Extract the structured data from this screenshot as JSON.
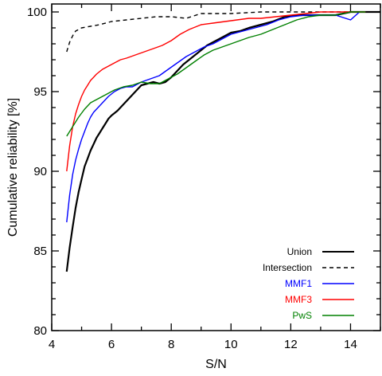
{
  "chart_data": {
    "type": "line",
    "title": "",
    "xlabel": "S/N",
    "ylabel": "Cumulative reliability [%]",
    "xlim": [
      4,
      15
    ],
    "ylim": [
      80,
      100.5
    ],
    "xticks": [
      4,
      6,
      8,
      10,
      12,
      14
    ],
    "yticks": [
      80,
      85,
      90,
      95,
      100
    ],
    "grid": false,
    "legend_position": "bottom-right",
    "series": [
      {
        "name": "Union",
        "color": "#000000",
        "dash": "solid",
        "x": [
          4.5,
          4.6,
          4.7,
          4.8,
          4.9,
          5.0,
          5.1,
          5.2,
          5.3,
          5.4,
          5.5,
          5.6,
          5.7,
          5.8,
          5.9,
          6.0,
          6.2,
          6.4,
          6.6,
          6.8,
          7.0,
          7.2,
          7.4,
          7.6,
          7.8,
          8.0,
          8.2,
          8.4,
          8.6,
          8.8,
          9.0,
          9.2,
          9.4,
          9.6,
          9.8,
          10.0,
          10.3,
          10.6,
          11.0,
          11.4,
          11.8,
          12.2,
          12.6,
          13.0,
          13.5,
          14.0,
          14.5,
          15.0
        ],
        "y": [
          83.7,
          85.2,
          86.5,
          87.7,
          88.7,
          89.5,
          90.3,
          90.8,
          91.3,
          91.7,
          92.1,
          92.4,
          92.7,
          93.0,
          93.3,
          93.5,
          93.8,
          94.2,
          94.6,
          95.0,
          95.4,
          95.5,
          95.6,
          95.5,
          95.6,
          95.9,
          96.3,
          96.7,
          97.0,
          97.3,
          97.6,
          97.9,
          98.1,
          98.3,
          98.5,
          98.7,
          98.8,
          99.0,
          99.2,
          99.4,
          99.7,
          99.8,
          99.8,
          99.8,
          99.8,
          100.0,
          100.0,
          100.0
        ]
      },
      {
        "name": "Intersection",
        "color": "#000000",
        "dash": "dashed",
        "x": [
          4.5,
          4.6,
          4.7,
          4.8,
          4.9,
          5.0,
          5.3,
          5.6,
          6.0,
          6.5,
          7.0,
          7.5,
          8.0,
          8.5,
          9.0,
          9.5,
          10.0,
          11.0,
          12.0,
          13.0,
          14.0,
          15.0
        ],
        "y": [
          97.5,
          98.1,
          98.5,
          98.8,
          98.9,
          99.0,
          99.1,
          99.2,
          99.4,
          99.5,
          99.6,
          99.7,
          99.7,
          99.6,
          99.9,
          99.9,
          99.9,
          100.0,
          100.0,
          100.0,
          100.0,
          100.0
        ]
      },
      {
        "name": "MMF1",
        "color": "#0000ff",
        "dash": "solid",
        "x": [
          4.5,
          4.6,
          4.7,
          4.8,
          4.9,
          5.0,
          5.1,
          5.2,
          5.3,
          5.4,
          5.5,
          5.7,
          5.9,
          6.1,
          6.3,
          6.5,
          6.7,
          7.0,
          7.3,
          7.6,
          7.9,
          8.2,
          8.5,
          8.8,
          9.1,
          9.4,
          9.7,
          10.0,
          10.4,
          10.8,
          11.2,
          11.6,
          12.0,
          12.5,
          13.0,
          13.5,
          14.0,
          14.3
        ],
        "y": [
          86.8,
          88.5,
          89.8,
          90.7,
          91.4,
          92.0,
          92.5,
          93.0,
          93.4,
          93.7,
          93.9,
          94.3,
          94.7,
          95.0,
          95.2,
          95.3,
          95.3,
          95.6,
          95.8,
          96.0,
          96.4,
          96.8,
          97.2,
          97.5,
          97.8,
          98.0,
          98.3,
          98.6,
          98.8,
          99.0,
          99.2,
          99.5,
          99.7,
          99.8,
          99.8,
          99.8,
          99.5,
          100.0
        ]
      },
      {
        "name": "MMF3",
        "color": "#ff0000",
        "dash": "solid",
        "x": [
          4.5,
          4.6,
          4.7,
          4.8,
          4.9,
          5.0,
          5.1,
          5.2,
          5.3,
          5.4,
          5.5,
          5.7,
          5.9,
          6.1,
          6.3,
          6.5,
          6.8,
          7.1,
          7.4,
          7.7,
          8.0,
          8.3,
          8.6,
          9.0,
          9.4,
          9.8,
          10.2,
          10.6,
          11.0,
          11.5,
          12.0,
          12.5,
          13.0,
          13.5,
          14.0,
          14.5
        ],
        "y": [
          90.0,
          91.6,
          92.8,
          93.6,
          94.2,
          94.7,
          95.1,
          95.4,
          95.7,
          95.9,
          96.1,
          96.4,
          96.6,
          96.8,
          97.0,
          97.1,
          97.3,
          97.5,
          97.7,
          97.9,
          98.2,
          98.6,
          98.9,
          99.2,
          99.3,
          99.4,
          99.5,
          99.6,
          99.6,
          99.7,
          99.8,
          99.9,
          100.0,
          100.0,
          100.0,
          100.0
        ]
      },
      {
        "name": "PwS",
        "color": "#008000",
        "dash": "solid",
        "x": [
          4.5,
          4.7,
          4.9,
          5.1,
          5.3,
          5.5,
          5.8,
          6.1,
          6.4,
          6.7,
          7.0,
          7.3,
          7.6,
          7.9,
          8.2,
          8.5,
          8.8,
          9.1,
          9.4,
          9.7,
          10.0,
          10.3,
          10.6,
          11.0,
          11.4,
          11.8,
          12.2,
          12.6,
          13.0,
          13.5,
          14.0,
          14.5
        ],
        "y": [
          92.2,
          92.8,
          93.4,
          93.9,
          94.3,
          94.5,
          94.8,
          95.1,
          95.3,
          95.4,
          95.6,
          95.5,
          95.5,
          95.8,
          96.1,
          96.5,
          96.9,
          97.3,
          97.6,
          97.8,
          98.0,
          98.2,
          98.4,
          98.6,
          98.9,
          99.2,
          99.5,
          99.7,
          99.8,
          99.8,
          100.0,
          100.0
        ]
      }
    ]
  }
}
